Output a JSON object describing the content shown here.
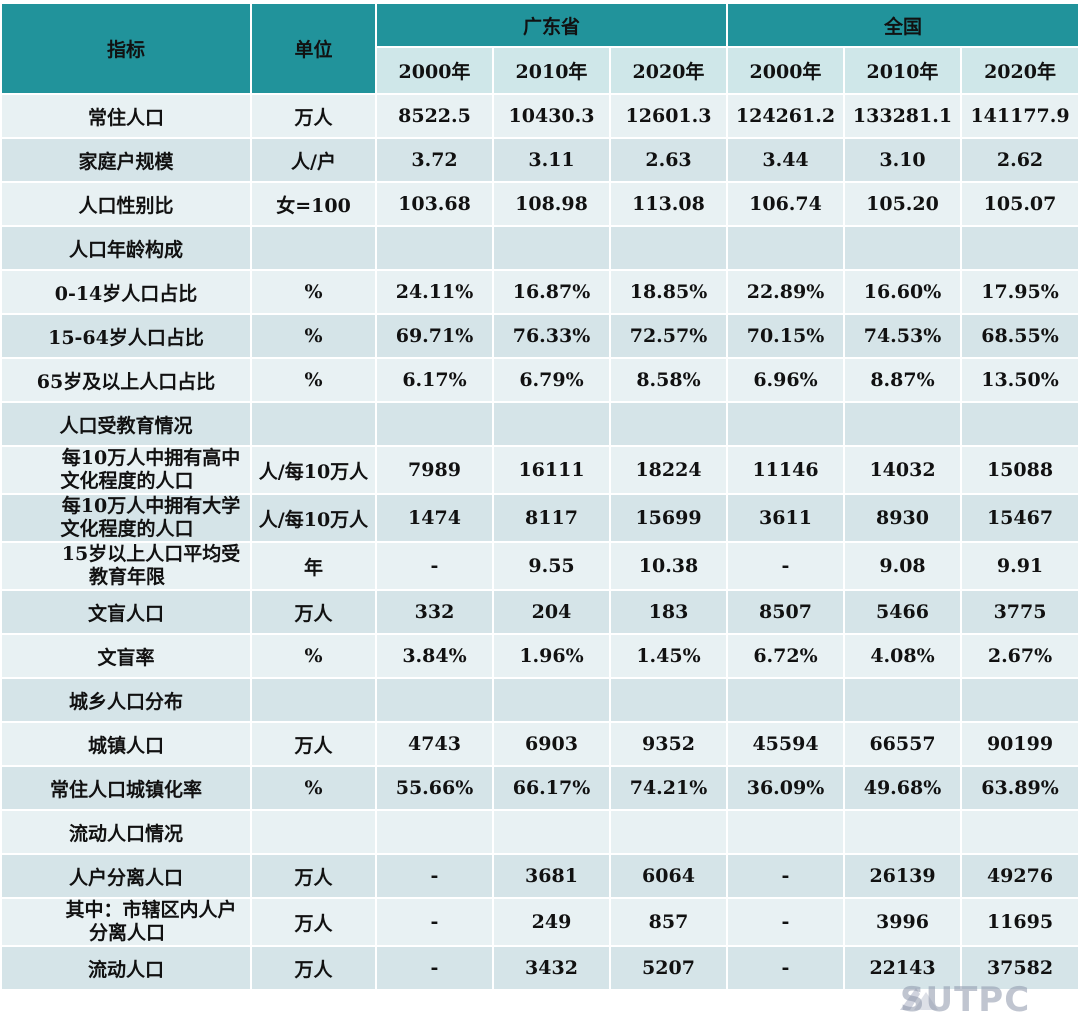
{
  "header": {
    "indicator": "指标",
    "unit": "单位",
    "group_gd": "广东省",
    "group_cn": "全国",
    "years": [
      "2000年",
      "2010年",
      "2020年",
      "2000年",
      "2010年",
      "2020年"
    ]
  },
  "rows": [
    {
      "label": "常住人口",
      "unit": "万人",
      "v": [
        "8522.5",
        "10430.3",
        "12601.3",
        "124261.2",
        "133281.1",
        "141177.9"
      ]
    },
    {
      "label": "家庭户规模",
      "unit": "人/户",
      "v": [
        "3.72",
        "3.11",
        "2.63",
        "3.44",
        "3.10",
        "2.62"
      ]
    },
    {
      "label": "人口性别比",
      "unit": "女=100",
      "v": [
        "103.68",
        "108.98",
        "113.08",
        "106.74",
        "105.20",
        "105.07"
      ]
    },
    {
      "label": "人口年龄构成"
    },
    {
      "label": "0-14岁人口占比",
      "unit": "%",
      "v": [
        "24.11%",
        "16.87%",
        "18.85%",
        "22.89%",
        "16.60%",
        "17.95%"
      ]
    },
    {
      "label": "15-64岁人口占比",
      "unit": "%",
      "v": [
        "69.71%",
        "76.33%",
        "72.57%",
        "70.15%",
        "74.53%",
        "68.55%"
      ]
    },
    {
      "label": "65岁及以上人口占比",
      "unit": "%",
      "v": [
        "6.17%",
        "6.79%",
        "8.58%",
        "6.96%",
        "8.87%",
        "13.50%"
      ]
    },
    {
      "label": "人口受教育情况"
    },
    {
      "label1": "每10万人中拥有高中",
      "label2": "文化程度的人口",
      "unit": "人/每10万人",
      "v": [
        "7989",
        "16111",
        "18224",
        "11146",
        "14032",
        "15088"
      ]
    },
    {
      "label1": "每10万人中拥有大学",
      "label2": "文化程度的人口",
      "unit": "人/每10万人",
      "v": [
        "1474",
        "8117",
        "15699",
        "3611",
        "8930",
        "15467"
      ]
    },
    {
      "label1": "15岁以上人口平均受",
      "label2": "教育年限",
      "unit": "年",
      "v": [
        "-",
        "9.55",
        "10.38",
        "-",
        "9.08",
        "9.91"
      ]
    },
    {
      "label": "文盲人口",
      "unit": "万人",
      "v": [
        "332",
        "204",
        "183",
        "8507",
        "5466",
        "3775"
      ]
    },
    {
      "label": "文盲率",
      "unit": "%",
      "v": [
        "3.84%",
        "1.96%",
        "1.45%",
        "6.72%",
        "4.08%",
        "2.67%"
      ]
    },
    {
      "label": "城乡人口分布"
    },
    {
      "label": "城镇人口",
      "unit": "万人",
      "v": [
        "4743",
        "6903",
        "9352",
        "45594",
        "66557",
        "90199"
      ]
    },
    {
      "label": "常住人口城镇化率",
      "unit": "%",
      "v": [
        "55.66%",
        "66.17%",
        "74.21%",
        "36.09%",
        "49.68%",
        "63.89%"
      ]
    },
    {
      "label": "流动人口情况"
    },
    {
      "label": "人户分离人口",
      "unit": "万人",
      "v": [
        "-",
        "3681",
        "6064",
        "-",
        "26139",
        "49276"
      ]
    },
    {
      "label1": "其中：市辖区内人户",
      "label2": "分离人口",
      "unit": "万人",
      "v": [
        "-",
        "249",
        "857",
        "-",
        "3996",
        "11695"
      ]
    },
    {
      "label": "流动人口",
      "unit": "万人",
      "v": [
        "-",
        "3432",
        "5207",
        "-",
        "22143",
        "37582"
      ]
    }
  ],
  "watermark": "SUTPC"
}
